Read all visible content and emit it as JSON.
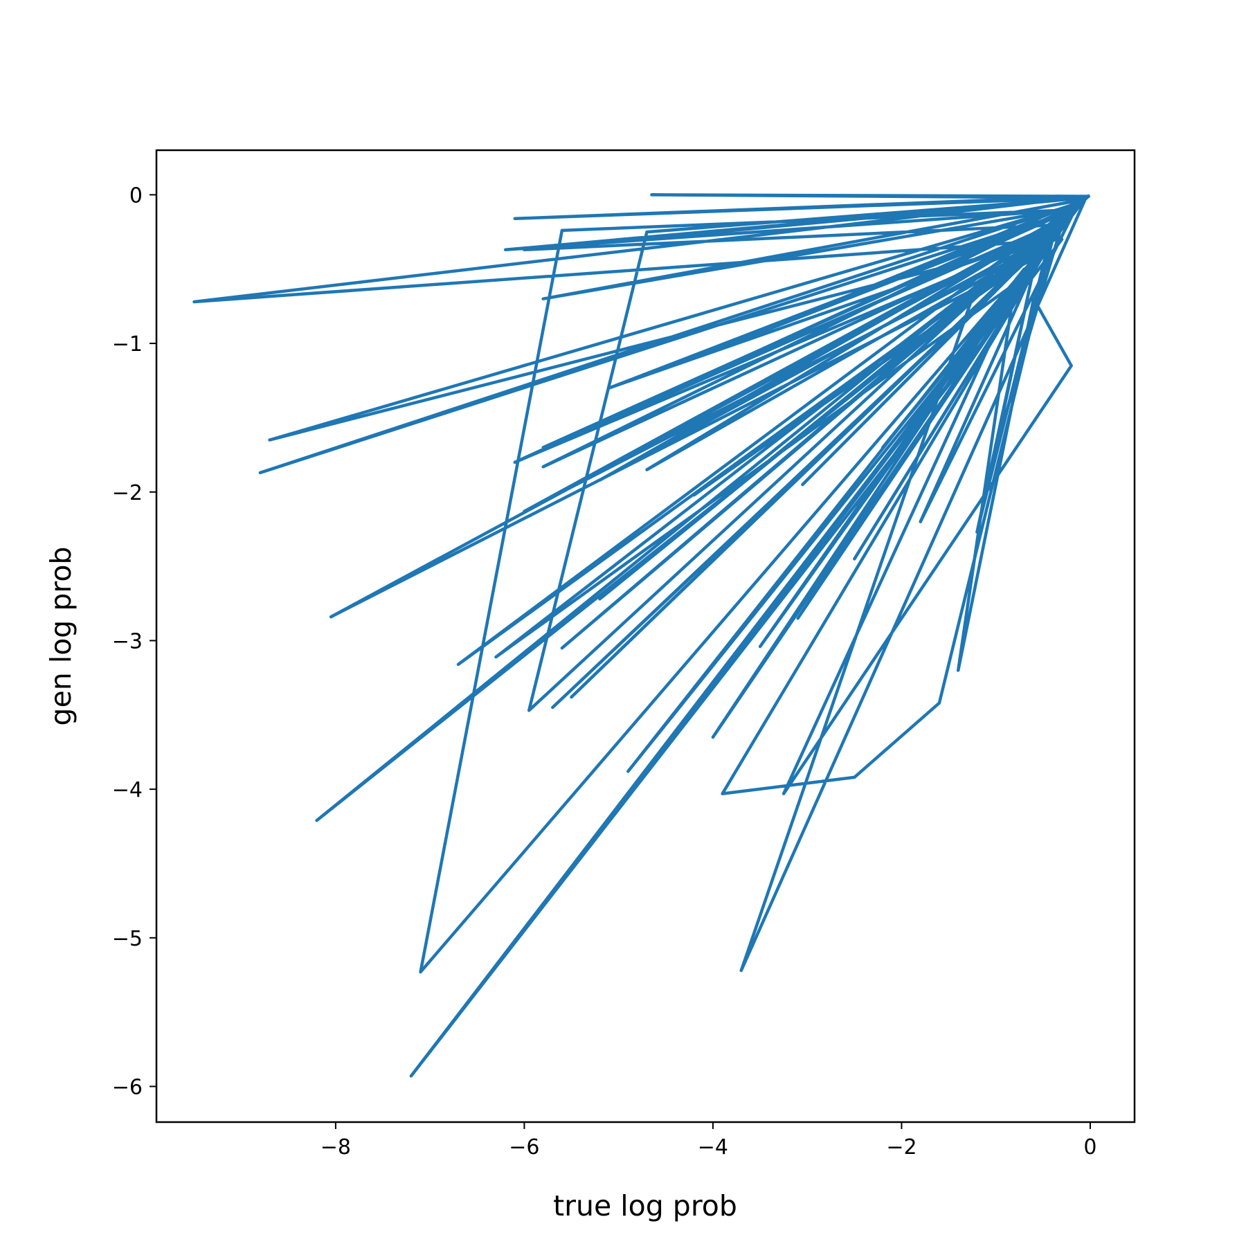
{
  "chart_data": {
    "type": "line",
    "title": "",
    "xlabel": "true log prob",
    "ylabel": "gen log prob",
    "xlim": [
      -9.9,
      0.47
    ],
    "ylim": [
      -6.24,
      0.3
    ],
    "xticks": [
      {
        "value": -8,
        "label": "−8"
      },
      {
        "value": -6,
        "label": "−6"
      },
      {
        "value": -4,
        "label": "−4"
      },
      {
        "value": -2,
        "label": "−2"
      },
      {
        "value": 0,
        "label": "0"
      }
    ],
    "yticks": [
      {
        "value": 0,
        "label": "0"
      },
      {
        "value": -1,
        "label": "−1"
      },
      {
        "value": -2,
        "label": "−2"
      },
      {
        "value": -3,
        "label": "−3"
      },
      {
        "value": -4,
        "label": "−4"
      },
      {
        "value": -5,
        "label": "−5"
      },
      {
        "value": -6,
        "label": "−6"
      }
    ],
    "grid": false,
    "legend": "none",
    "series": [
      {
        "color": "#1f77b4",
        "points": [
          [
            -0.02,
            -0.01
          ],
          [
            -6.1,
            -0.16
          ],
          [
            -0.05,
            -0.02
          ],
          [
            -4.65,
            0.0
          ],
          [
            -0.03,
            -0.01
          ],
          [
            -9.5,
            -0.72
          ],
          [
            -0.3,
            -0.3
          ],
          [
            -7.2,
            -5.93
          ],
          [
            -0.1,
            -0.05
          ],
          [
            -8.2,
            -4.21
          ],
          [
            -0.25,
            -0.2
          ],
          [
            -6.7,
            -3.16
          ],
          [
            -0.08,
            -0.03
          ],
          [
            -5.95,
            -3.47
          ],
          [
            -4.7,
            -0.25
          ],
          [
            -0.04,
            -0.02
          ],
          [
            -7.1,
            -5.23
          ],
          [
            -5.6,
            -0.24
          ],
          [
            -0.15,
            -0.1
          ],
          [
            -8.8,
            -1.87
          ],
          [
            -0.06,
            -0.04
          ],
          [
            -3.7,
            -5.22
          ],
          [
            -1.2,
            -0.6
          ],
          [
            -0.5,
            -0.4
          ],
          [
            -8.05,
            -2.84
          ],
          [
            -0.2,
            -0.15
          ],
          [
            -5.7,
            -3.45
          ],
          [
            -0.35,
            -0.25
          ],
          [
            -3.9,
            -4.03
          ],
          [
            -2.5,
            -3.92
          ],
          [
            -1.6,
            -3.42
          ],
          [
            -0.4,
            -0.3
          ],
          [
            -4.5,
            -3.72
          ],
          [
            -0.12,
            -0.08
          ],
          [
            -5.5,
            -3.38
          ],
          [
            -0.3,
            -0.2
          ],
          [
            -4.0,
            -3.65
          ],
          [
            -0.7,
            -0.5
          ],
          [
            -3.25,
            -4.03
          ],
          [
            -0.2,
            -1.15
          ],
          [
            -0.6,
            -0.7
          ],
          [
            -1.4,
            -3.2
          ],
          [
            -0.8,
            -0.6
          ],
          [
            -6.3,
            -3.11
          ],
          [
            -0.2,
            -0.12
          ],
          [
            -6.0,
            -2.13
          ],
          [
            -0.4,
            -0.3
          ],
          [
            -8.7,
            -1.65
          ],
          [
            -0.08,
            -0.05
          ],
          [
            -6.1,
            -1.8
          ],
          [
            -0.5,
            -0.3
          ],
          [
            -5.2,
            -1.92
          ],
          [
            -0.15,
            -0.1
          ],
          [
            -5.6,
            -3.05
          ],
          [
            -0.3,
            -0.2
          ],
          [
            -3.1,
            -2.85
          ],
          [
            -0.5,
            -0.4
          ],
          [
            -4.9,
            -3.88
          ],
          [
            -0.7,
            -0.5
          ],
          [
            -3.5,
            -3.04
          ],
          [
            -0.3,
            -0.2
          ],
          [
            -5.2,
            -2.72
          ],
          [
            -0.15,
            -0.1
          ],
          [
            -4.7,
            -1.85
          ],
          [
            -0.4,
            -0.3
          ],
          [
            -2.5,
            -2.45
          ],
          [
            -0.6,
            -0.5
          ],
          [
            -1.8,
            -2.2
          ],
          [
            -0.2,
            -0.15
          ],
          [
            -2.2,
            -1.7
          ],
          [
            -0.1,
            -0.05
          ],
          [
            -5.8,
            -1.83
          ],
          [
            -0.25,
            -0.2
          ],
          [
            -6.0,
            -0.37
          ],
          [
            -0.05,
            -0.02
          ],
          [
            -6.2,
            -0.37
          ],
          [
            -0.2,
            -0.1
          ],
          [
            -5.1,
            -1.3
          ],
          [
            -0.35,
            -0.25
          ],
          [
            -4.2,
            -2.02
          ],
          [
            -0.45,
            -0.35
          ],
          [
            -1.2,
            -2.27
          ],
          [
            -0.6,
            -0.5
          ],
          [
            -1.0,
            -1.7
          ],
          [
            -0.3,
            -0.2
          ],
          [
            -3.05,
            -1.95
          ],
          [
            -0.15,
            -0.1
          ],
          [
            -4.2,
            -1.1
          ],
          [
            -0.05,
            -0.03
          ],
          [
            -5.8,
            -0.7
          ],
          [
            -0.12,
            -0.08
          ],
          [
            -5.8,
            -1.7
          ],
          [
            -0.2,
            -0.15
          ],
          [
            -5.4,
            -1.6
          ],
          [
            -0.1,
            -0.06
          ],
          [
            -0.02,
            -0.01
          ]
        ]
      }
    ]
  }
}
